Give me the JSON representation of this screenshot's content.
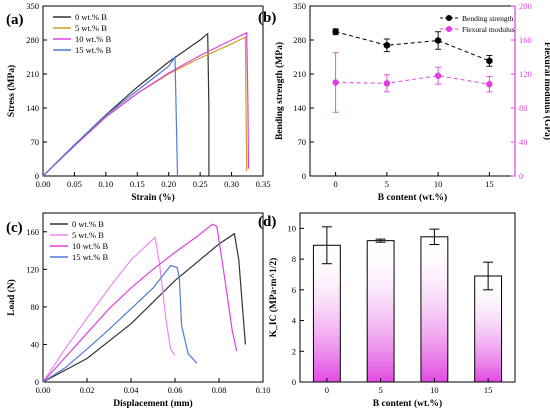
{
  "chart_data": [
    {
      "type": "line",
      "panel_label": "(a)",
      "xlabel": "Strain (%)",
      "ylabel": "Stress (MPa)",
      "xlim": [
        0,
        0.35
      ],
      "ylim": [
        0,
        350
      ],
      "xticks": [
        0.0,
        0.05,
        0.1,
        0.15,
        0.2,
        0.25,
        0.3,
        0.35
      ],
      "xtick_labels": [
        "0.00",
        "0.05",
        "0.10",
        "0.15",
        "0.20",
        "0.25",
        "0.30",
        "0.35"
      ],
      "yticks": [
        0,
        70,
        140,
        210,
        280,
        350
      ],
      "ytick_labels": [
        "0",
        "70",
        "140",
        "210",
        "280",
        "350"
      ],
      "legend_position": "top-center",
      "series": [
        {
          "name": "0 wt.% B",
          "color": "#333333",
          "x": [
            0,
            0.05,
            0.1,
            0.15,
            0.2,
            0.25,
            0.262,
            0.264,
            0.264
          ],
          "y": [
            0,
            64,
            126,
            183,
            235,
            280,
            293,
            140,
            0
          ]
        },
        {
          "name": "5 wt.% B",
          "color": "#c9a227",
          "x": [
            0,
            0.05,
            0.1,
            0.15,
            0.2,
            0.25,
            0.3,
            0.322,
            0.323,
            0.324
          ],
          "y": [
            0,
            62,
            121,
            170,
            210,
            243,
            272,
            286,
            150,
            10
          ]
        },
        {
          "name": "10 wt.% B",
          "color": "#e040e0",
          "x": [
            0,
            0.05,
            0.1,
            0.15,
            0.2,
            0.25,
            0.3,
            0.324,
            0.326,
            0.327
          ],
          "y": [
            0,
            62,
            122,
            170,
            212,
            248,
            280,
            295,
            150,
            15
          ]
        },
        {
          "name": "15 wt.% B",
          "color": "#4f7cd4",
          "x": [
            0,
            0.05,
            0.1,
            0.15,
            0.2,
            0.21,
            0.212,
            0.214
          ],
          "y": [
            0,
            64,
            125,
            176,
            226,
            245,
            120,
            0
          ]
        }
      ]
    },
    {
      "type": "line",
      "panel_label": "(b)",
      "xlabel": "B content (wt.%)",
      "ylabel": "Bending strength (MPa)",
      "ylabel_right": "Flexural modulus (GPa)",
      "xlim": [
        -2.5,
        17.5
      ],
      "ylim": [
        0,
        350
      ],
      "ylim_right": [
        0,
        200
      ],
      "xticks": [
        0,
        5,
        10,
        15
      ],
      "xtick_labels": [
        "0",
        "5",
        "10",
        "15"
      ],
      "yticks": [
        0,
        70,
        140,
        210,
        280,
        350
      ],
      "ytick_labels": [
        "0",
        "70",
        "140",
        "210",
        "280",
        "350"
      ],
      "yticks_right": [
        0,
        40,
        80,
        120,
        160,
        200
      ],
      "ytick_labels_right": [
        "0",
        "40",
        "80",
        "120",
        "160",
        "200"
      ],
      "legend_position": "top-right",
      "series": [
        {
          "name": "Bending strength",
          "color": "#000000",
          "axis": "left",
          "x": [
            0,
            5,
            10,
            15
          ],
          "y": [
            297,
            269,
            279,
            237
          ],
          "err": [
            6,
            13,
            18,
            11
          ]
        },
        {
          "name": "Flexural modulus",
          "color": "#e040e0",
          "axis": "right",
          "x": [
            0,
            5,
            10,
            15
          ],
          "y": [
            110,
            109,
            118,
            108
          ],
          "err": [
            35,
            10,
            10,
            9
          ]
        }
      ]
    },
    {
      "type": "line",
      "panel_label": "(c)",
      "xlabel": "Displacement (mm)",
      "ylabel": "Load (N)",
      "xlim": [
        0,
        0.1
      ],
      "ylim": [
        0,
        180
      ],
      "xticks": [
        0.0,
        0.02,
        0.04,
        0.06,
        0.08,
        0.1
      ],
      "xtick_labels": [
        "0.00",
        "0.02",
        "0.04",
        "0.06",
        "0.08",
        "0.10"
      ],
      "yticks": [
        0,
        40,
        80,
        120,
        160
      ],
      "ytick_labels": [
        "0",
        "40",
        "80",
        "120",
        "160"
      ],
      "legend_position": "top-left",
      "series": [
        {
          "name": "0 wt.% B",
          "color": "#333333",
          "x": [
            0,
            0.02,
            0.04,
            0.06,
            0.08,
            0.087,
            0.089,
            0.091,
            0.092
          ],
          "y": [
            0,
            25,
            62,
            108,
            147,
            158,
            130,
            70,
            40
          ]
        },
        {
          "name": "5 wt.% B",
          "color": "#ef88ef",
          "x": [
            0,
            0.01,
            0.02,
            0.03,
            0.04,
            0.05,
            0.051,
            0.053,
            0.056,
            0.058,
            0.06
          ],
          "y": [
            0,
            35,
            68,
            100,
            130,
            152,
            154,
            125,
            65,
            35,
            28
          ]
        },
        {
          "name": "10 wt.% B",
          "color": "#e040e0",
          "x": [
            0,
            0.01,
            0.02,
            0.03,
            0.04,
            0.05,
            0.06,
            0.07,
            0.077,
            0.079,
            0.082,
            0.086,
            0.088
          ],
          "y": [
            0,
            26,
            52,
            78,
            100,
            120,
            138,
            155,
            168,
            166,
            120,
            55,
            33
          ]
        },
        {
          "name": "15 wt.% B",
          "color": "#4f7cd4",
          "x": [
            0,
            0.01,
            0.02,
            0.03,
            0.04,
            0.05,
            0.058,
            0.061,
            0.062,
            0.063,
            0.066,
            0.07
          ],
          "y": [
            0,
            15,
            35,
            56,
            78,
            100,
            124,
            122,
            110,
            60,
            30,
            20
          ]
        }
      ]
    },
    {
      "type": "bar",
      "panel_label": "(d)",
      "xlabel": "B content (wt.%)",
      "ylabel": "K_IC (MPa·m^1/2)",
      "ylim": [
        0,
        11
      ],
      "categories": [
        "0",
        "5",
        "10",
        "15"
      ],
      "yticks": [
        0,
        2,
        4,
        6,
        8,
        10
      ],
      "ytick_labels": [
        "0",
        "2",
        "4",
        "6",
        "8",
        "10"
      ],
      "series": [
        {
          "name": "",
          "values": [
            8.9,
            9.2,
            9.45,
            6.9
          ],
          "err": [
            1.2,
            0.1,
            0.5,
            0.9
          ],
          "color": "#e040e0"
        }
      ]
    }
  ]
}
